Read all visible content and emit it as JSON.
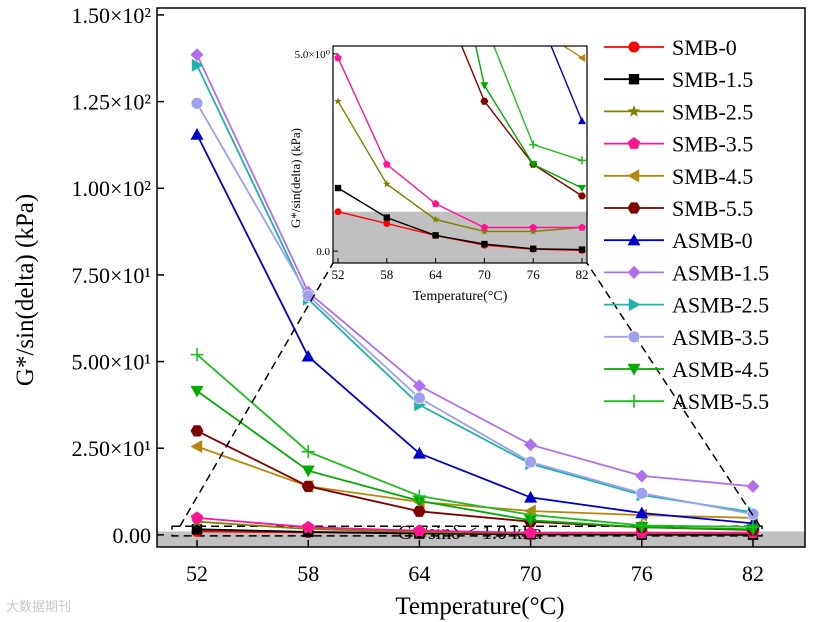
{
  "chart_data": {
    "type": "line",
    "xlabel": "Temperature(°C)",
    "ylabel": "G*/sin(delta) (kPa)",
    "categories": [
      52,
      58,
      64,
      70,
      76,
      82
    ],
    "ylim": [
      -3.5,
      152
    ],
    "yticks": [
      {
        "value": 0,
        "label": "0.00"
      },
      {
        "value": 25,
        "label": "2.50×10¹"
      },
      {
        "value": 50,
        "label": "5.00×10¹"
      },
      {
        "value": 75,
        "label": "7.50×10¹"
      },
      {
        "value": 100,
        "label": "1.00×10²"
      },
      {
        "value": 125,
        "label": "1.25×10²"
      },
      {
        "value": 150,
        "label": "1.50×10²"
      }
    ],
    "xticks": [
      "52",
      "58",
      "64",
      "70",
      "76",
      "82"
    ],
    "threshold": {
      "value": 1.0,
      "label": "G*/sinδ < 1.0 kPa"
    },
    "series": [
      {
        "name": "SMB-0",
        "color": "#ff0000",
        "marker": "circle",
        "values": [
          1.0,
          0.7,
          0.4,
          0.15,
          0.05,
          0.02
        ]
      },
      {
        "name": "SMB-1.5",
        "color": "#000000",
        "marker": "square",
        "values": [
          1.6,
          0.85,
          0.4,
          0.18,
          0.06,
          0.04
        ]
      },
      {
        "name": "SMB-2.5",
        "color": "#808000",
        "marker": "star",
        "values": [
          3.8,
          1.7,
          0.8,
          0.5,
          0.5,
          0.6
        ]
      },
      {
        "name": "SMB-3.5",
        "color": "#ff1493",
        "marker": "pentagon",
        "values": [
          4.9,
          2.2,
          1.2,
          0.6,
          0.6,
          0.6
        ]
      },
      {
        "name": "SMB-4.5",
        "color": "#b8860b",
        "marker": "triangle-left",
        "values": [
          25.5,
          14.0,
          9.5,
          6.9,
          5.7,
          4.9
        ]
      },
      {
        "name": "SMB-5.5",
        "color": "#800000",
        "marker": "hexagon",
        "values": [
          30.0,
          14.0,
          6.8,
          3.8,
          2.2,
          1.4
        ]
      },
      {
        "name": "ASMB-0",
        "color": "#0000cd",
        "marker": "triangle-up",
        "values": [
          115.5,
          51.5,
          23.5,
          10.8,
          6.3,
          3.3
        ]
      },
      {
        "name": "ASMB-1.5",
        "color": "#b070ee",
        "marker": "diamond",
        "values": [
          138.5,
          70.0,
          43.0,
          26.0,
          17.0,
          14.0
        ]
      },
      {
        "name": "ASMB-2.5",
        "color": "#20b2aa",
        "marker": "triangle-right",
        "values": [
          135.5,
          68.0,
          37.5,
          20.5,
          11.5,
          6.5
        ]
      },
      {
        "name": "ASMB-3.5",
        "color": "#9f9fef",
        "marker": "sphere",
        "values": [
          124.5,
          69.0,
          39.5,
          21.0,
          12.0,
          6.0
        ]
      },
      {
        "name": "ASMB-4.5",
        "color": "#00aa00",
        "marker": "triangle-down",
        "values": [
          41.5,
          18.5,
          9.8,
          4.2,
          2.2,
          1.6
        ]
      },
      {
        "name": "ASMB-5.5",
        "color": "#22bb22",
        "marker": "plus",
        "values": [
          52.0,
          24.0,
          11.2,
          5.8,
          2.7,
          2.3
        ]
      }
    ],
    "inset": {
      "xlabel": "Temperature(°C)",
      "ylabel": "G*/sin(delta) (kPa)",
      "ytick_labels": [
        "0.0",
        "5.0×10⁰"
      ],
      "xtick_labels": [
        "52",
        "58",
        "64",
        "70",
        "76",
        "82"
      ]
    }
  },
  "watermark": "大数据期刊"
}
